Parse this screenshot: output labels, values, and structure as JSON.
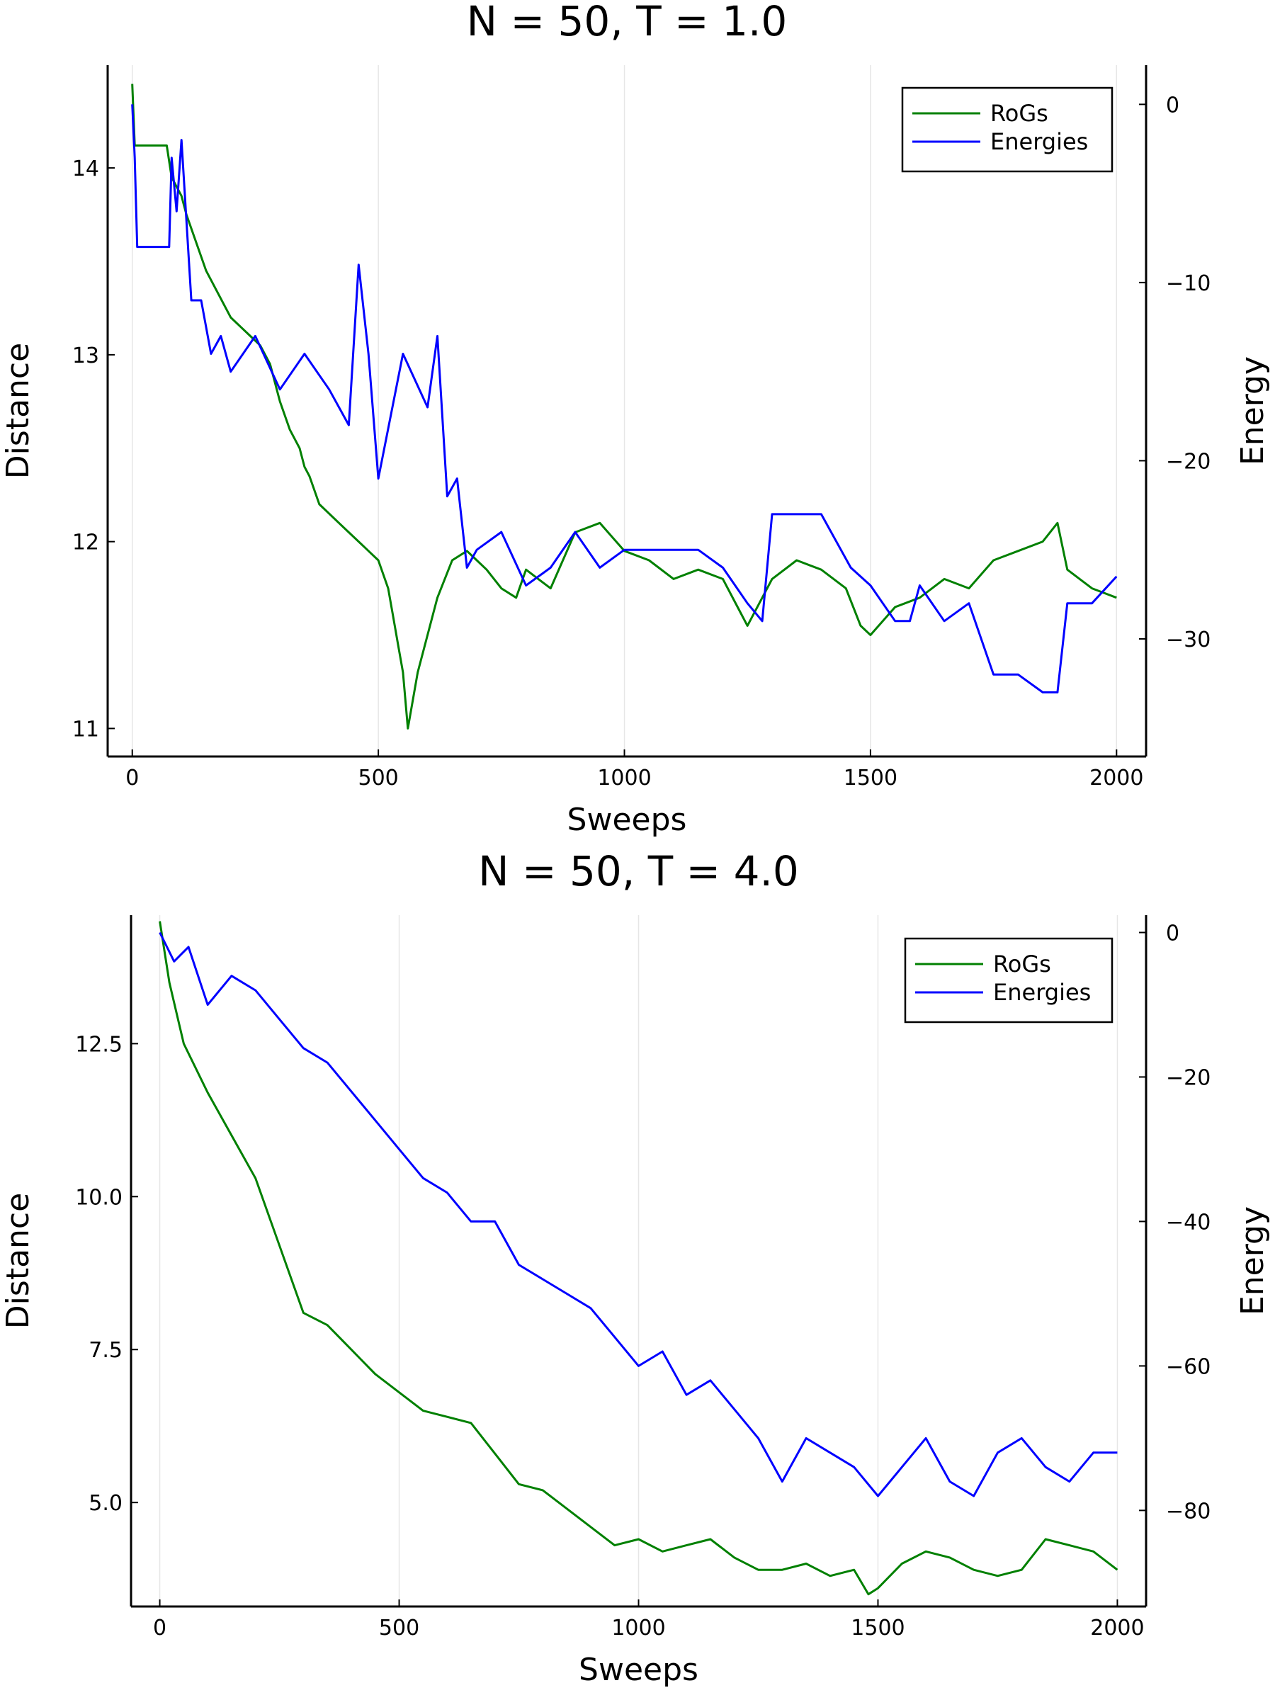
{
  "colors": {
    "rogs": "#008000",
    "energies": "#0000ff",
    "axis": "#000000",
    "grid": "#e6e6e6"
  },
  "chart_data": [
    {
      "type": "line",
      "title": "N = 50, T = 1.0",
      "xlabel": "Sweeps",
      "ylabel": "Distance",
      "y2label": "Energy",
      "xlim": [
        -50,
        2060
      ],
      "ylim": [
        10.85,
        14.55
      ],
      "y2lim": [
        -36.6,
        2.2
      ],
      "xticks": [
        0,
        500,
        1000,
        1500,
        2000
      ],
      "xtick_labels": [
        "0",
        "500",
        "1000",
        "1500",
        "2000"
      ],
      "yticks": [
        11,
        12,
        13,
        14
      ],
      "ytick_labels": [
        "11",
        "12",
        "13",
        "14"
      ],
      "y2ticks": [
        0,
        -10,
        -20,
        -30
      ],
      "y2tick_labels": [
        "0",
        "−10",
        "−20",
        "−30"
      ],
      "grid": "vertical",
      "legend_position": "top-right",
      "series": [
        {
          "name": "RoGs",
          "axis": "left",
          "color": "#008000",
          "x": [
            0,
            5,
            70,
            80,
            100,
            110,
            130,
            150,
            180,
            200,
            220,
            240,
            260,
            280,
            300,
            320,
            340,
            350,
            360,
            380,
            400,
            420,
            440,
            460,
            480,
            500,
            520,
            530,
            540,
            550,
            560,
            580,
            600,
            620,
            650,
            680,
            700,
            720,
            750,
            780,
            800,
            850,
            900,
            950,
            1000,
            1050,
            1100,
            1150,
            1200,
            1230,
            1250,
            1280,
            1300,
            1350,
            1400,
            1450,
            1480,
            1500,
            1550,
            1600,
            1650,
            1700,
            1750,
            1800,
            1850,
            1880,
            1900,
            1950,
            2000
          ],
          "values": [
            14.45,
            14.12,
            14.12,
            13.95,
            13.85,
            13.75,
            13.6,
            13.45,
            13.3,
            13.2,
            13.15,
            13.1,
            13.05,
            12.95,
            12.75,
            12.6,
            12.5,
            12.4,
            12.35,
            12.2,
            12.15,
            12.1,
            12.05,
            12.0,
            11.95,
            11.9,
            11.75,
            11.6,
            11.45,
            11.3,
            11.0,
            11.3,
            11.5,
            11.7,
            11.9,
            11.95,
            11.9,
            11.85,
            11.75,
            11.7,
            11.85,
            11.75,
            12.05,
            12.1,
            11.95,
            11.9,
            11.8,
            11.85,
            11.8,
            11.65,
            11.55,
            11.7,
            11.8,
            11.9,
            11.85,
            11.75,
            11.55,
            11.5,
            11.65,
            11.7,
            11.8,
            11.75,
            11.9,
            11.95,
            12.0,
            12.1,
            11.85,
            11.75,
            11.7
          ]
        },
        {
          "name": "Energies",
          "axis": "right",
          "color": "#0000ff",
          "x": [
            0,
            5,
            10,
            75,
            80,
            90,
            100,
            120,
            140,
            160,
            180,
            200,
            250,
            300,
            350,
            400,
            440,
            460,
            480,
            500,
            550,
            600,
            620,
            640,
            660,
            680,
            700,
            750,
            800,
            850,
            900,
            950,
            1000,
            1050,
            1100,
            1150,
            1200,
            1250,
            1280,
            1300,
            1330,
            1400,
            1460,
            1500,
            1550,
            1580,
            1600,
            1650,
            1700,
            1750,
            1800,
            1850,
            1880,
            1900,
            1950,
            2000
          ],
          "values": [
            0,
            -3,
            -8,
            -8,
            -3,
            -6,
            -2,
            -11,
            -11,
            -14,
            -13,
            -15,
            -13,
            -16,
            -14,
            -16,
            -18,
            -9,
            -14,
            -21,
            -14,
            -17,
            -13,
            -22,
            -21,
            -26,
            -25,
            -24,
            -27,
            -26,
            -24,
            -26,
            -25,
            -25,
            -25,
            -25,
            -26,
            -28,
            -29,
            -23,
            -23,
            -23,
            -26,
            -27,
            -29,
            -29,
            -27,
            -29,
            -28,
            -32,
            -32,
            -33,
            -33,
            -28,
            -28,
            -26.5
          ]
        }
      ]
    },
    {
      "type": "line",
      "title": "N = 50, T = 4.0",
      "xlabel": "Sweeps",
      "ylabel": "Distance",
      "y2label": "Energy",
      "xlim": [
        -60,
        2060
      ],
      "ylim": [
        3.3,
        14.6
      ],
      "y2lim": [
        -93.3,
        2.4
      ],
      "xticks": [
        0,
        500,
        1000,
        1500,
        2000
      ],
      "xtick_labels": [
        "0",
        "500",
        "1000",
        "1500",
        "2000"
      ],
      "yticks": [
        5.0,
        7.5,
        10.0,
        12.5
      ],
      "ytick_labels": [
        "5.0",
        "7.5",
        "10.0",
        "12.5"
      ],
      "y2ticks": [
        0,
        -20,
        -40,
        -60,
        -80
      ],
      "y2tick_labels": [
        "0",
        "−20",
        "−40",
        "−60",
        "−80"
      ],
      "grid": "vertical",
      "legend_position": "top-right",
      "series": [
        {
          "name": "RoGs",
          "axis": "left",
          "color": "#008000",
          "x": [
            0,
            20,
            50,
            100,
            150,
            200,
            250,
            300,
            350,
            400,
            450,
            500,
            550,
            600,
            650,
            700,
            750,
            800,
            850,
            900,
            950,
            1000,
            1050,
            1100,
            1150,
            1200,
            1250,
            1300,
            1350,
            1400,
            1450,
            1480,
            1500,
            1550,
            1600,
            1650,
            1700,
            1750,
            1800,
            1850,
            1900,
            1950,
            2000
          ],
          "values": [
            14.5,
            13.5,
            12.5,
            11.7,
            11.0,
            10.3,
            9.2,
            8.1,
            7.9,
            7.5,
            7.1,
            6.8,
            6.5,
            6.4,
            6.3,
            5.8,
            5.3,
            5.2,
            4.9,
            4.6,
            4.3,
            4.4,
            4.2,
            4.3,
            4.4,
            4.1,
            3.9,
            3.9,
            4.0,
            3.8,
            3.9,
            3.5,
            3.6,
            4.0,
            4.2,
            4.1,
            3.9,
            3.8,
            3.9,
            4.4,
            4.3,
            4.2,
            3.9
          ]
        },
        {
          "name": "Energies",
          "axis": "right",
          "color": "#0000ff",
          "x": [
            0,
            30,
            60,
            100,
            150,
            200,
            250,
            300,
            350,
            400,
            450,
            500,
            550,
            600,
            650,
            700,
            750,
            800,
            850,
            900,
            950,
            1000,
            1050,
            1100,
            1150,
            1200,
            1250,
            1300,
            1350,
            1400,
            1450,
            1500,
            1550,
            1600,
            1650,
            1700,
            1750,
            1800,
            1850,
            1900,
            1950,
            2000
          ],
          "values": [
            0,
            -4,
            -2,
            -10,
            -6,
            -8,
            -12,
            -16,
            -18,
            -22,
            -26,
            -30,
            -34,
            -36,
            -40,
            -40,
            -46,
            -48,
            -50,
            -52,
            -56,
            -60,
            -58,
            -64,
            -62,
            -66,
            -70,
            -76,
            -70,
            -72,
            -74,
            -78,
            -74,
            -70,
            -76,
            -78,
            -72,
            -70,
            -74,
            -76,
            -72,
            -72
          ]
        }
      ]
    }
  ]
}
